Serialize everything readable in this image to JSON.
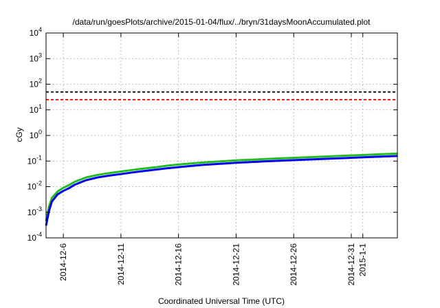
{
  "chart_data": {
    "type": "line",
    "title": "/data/run/goesPlots/archive/2015-01-04/flux/../bryn/31daysMoonAccumulated.plot",
    "xlabel": "Coordinated Universal Time (UTC)",
    "ylabel": "cGy",
    "yscale": "log",
    "ylim": [
      0.0001,
      10000
    ],
    "xlim": [
      "2014-12-04T12:00",
      "2015-01-04T00:00"
    ],
    "grid": true,
    "y_ticks": [
      {
        "value": 0.0001,
        "mant": "10",
        "exp": "-4"
      },
      {
        "value": 0.001,
        "mant": "10",
        "exp": "-3"
      },
      {
        "value": 0.01,
        "mant": "10",
        "exp": "-2"
      },
      {
        "value": 0.1,
        "mant": "10",
        "exp": "-1"
      },
      {
        "value": 1,
        "mant": "10",
        "exp": "0"
      },
      {
        "value": 10,
        "mant": "10",
        "exp": "1"
      },
      {
        "value": 100,
        "mant": "10",
        "exp": "2"
      },
      {
        "value": 1000,
        "mant": "10",
        "exp": "3"
      },
      {
        "value": 10000,
        "mant": "10",
        "exp": "4"
      }
    ],
    "x_ticks": [
      {
        "date": "2014-12-06",
        "label": "2014-12-6"
      },
      {
        "date": "2014-12-11",
        "label": "2014-12-11"
      },
      {
        "date": "2014-12-16",
        "label": "2014-12-16"
      },
      {
        "date": "2014-12-21",
        "label": "2014-12-21"
      },
      {
        "date": "2014-12-26",
        "label": "2014-12-26"
      },
      {
        "date": "2014-12-31",
        "label": "2014-12-31"
      },
      {
        "date": "2015-01-01",
        "label": "2015-1-1"
      }
    ],
    "thresholds": [
      {
        "value": 50,
        "color": "#000000",
        "style": "dashed"
      },
      {
        "value": 25,
        "color": "#ff0000",
        "style": "dashed"
      }
    ],
    "series": [
      {
        "color": "#22bb22",
        "x": [
          "2014-12-04T12:00",
          "2014-12-04T18:00",
          "2014-12-05T00:00",
          "2014-12-05T12:00",
          "2014-12-06T00:00",
          "2014-12-06T12:00",
          "2014-12-07T00:00",
          "2014-12-07T12:00",
          "2014-12-08T00:00",
          "2014-12-09T00:00",
          "2014-12-10T00:00",
          "2014-12-11T00:00",
          "2014-12-12T00:00",
          "2014-12-13T00:00",
          "2014-12-14T00:00",
          "2014-12-15T00:00",
          "2014-12-16T00:00",
          "2014-12-17T00:00",
          "2014-12-18T00:00",
          "2014-12-19T00:00",
          "2014-12-20T00:00",
          "2014-12-21T00:00",
          "2014-12-23T00:00",
          "2014-12-25T00:00",
          "2014-12-27T00:00",
          "2014-12-29T00:00",
          "2014-12-31T00:00",
          "2015-01-02T00:00",
          "2015-01-04T00:00"
        ],
        "y": [
          0.00045,
          0.0016,
          0.0036,
          0.0065,
          0.009,
          0.0115,
          0.0155,
          0.019,
          0.023,
          0.029,
          0.034,
          0.039,
          0.045,
          0.051,
          0.057,
          0.066,
          0.073,
          0.08,
          0.087,
          0.093,
          0.099,
          0.106,
          0.117,
          0.128,
          0.139,
          0.152,
          0.165,
          0.18,
          0.195
        ]
      },
      {
        "color": "#0000ee",
        "x": [
          "2014-12-04T12:00",
          "2014-12-04T18:00",
          "2014-12-05T00:00",
          "2014-12-05T12:00",
          "2014-12-06T00:00",
          "2014-12-06T12:00",
          "2014-12-07T00:00",
          "2014-12-07T12:00",
          "2014-12-08T00:00",
          "2014-12-09T00:00",
          "2014-12-10T00:00",
          "2014-12-11T00:00",
          "2014-12-12T00:00",
          "2014-12-13T00:00",
          "2014-12-14T00:00",
          "2014-12-15T00:00",
          "2014-12-16T00:00",
          "2014-12-17T00:00",
          "2014-12-18T00:00",
          "2014-12-19T00:00",
          "2014-12-20T00:00",
          "2014-12-21T00:00",
          "2014-12-23T00:00",
          "2014-12-25T00:00",
          "2014-12-27T00:00",
          "2014-12-29T00:00",
          "2014-12-31T00:00",
          "2015-01-02T00:00",
          "2015-01-04T00:00"
        ],
        "y": [
          0.0003,
          0.0011,
          0.0026,
          0.005,
          0.0068,
          0.0088,
          0.012,
          0.0148,
          0.018,
          0.023,
          0.027,
          0.031,
          0.036,
          0.041,
          0.046,
          0.052,
          0.058,
          0.064,
          0.07,
          0.075,
          0.08,
          0.086,
          0.095,
          0.104,
          0.113,
          0.123,
          0.134,
          0.146,
          0.158
        ]
      }
    ]
  }
}
